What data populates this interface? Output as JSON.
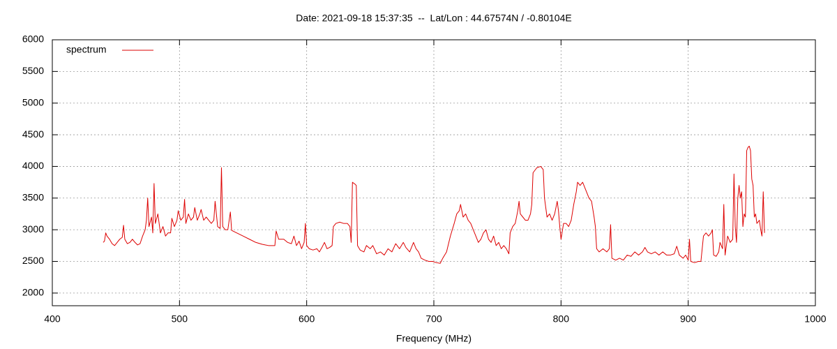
{
  "chart_data": {
    "type": "line",
    "title": "Date: 2021-09-18 15:37:35  --  Lat/Lon : 44.67574N / -0.80104E",
    "x_label": "Frequency (MHz)",
    "xlim": [
      400,
      1000
    ],
    "xticks": [
      400,
      500,
      600,
      700,
      800,
      900,
      1000
    ],
    "ylim": [
      1800,
      6000
    ],
    "yticks": [
      2000,
      2500,
      3000,
      3500,
      4000,
      4500,
      5000,
      5500,
      6000
    ],
    "grid": true,
    "legend": "top-left",
    "x": [
      440,
      441,
      442,
      443,
      445,
      447,
      449,
      451,
      453,
      455,
      456,
      457,
      459,
      461,
      463,
      465,
      467,
      469,
      471,
      473,
      474,
      475,
      476,
      478,
      479,
      480,
      481,
      483,
      485,
      487,
      489,
      491,
      493,
      494,
      496,
      498,
      499,
      501,
      503,
      504,
      505,
      507,
      509,
      511,
      512,
      514,
      516,
      517,
      519,
      521,
      523,
      525,
      527,
      528,
      530,
      532,
      533,
      534,
      536,
      538,
      540,
      541,
      545,
      550,
      555,
      560,
      565,
      570,
      575,
      576,
      578,
      582,
      585,
      588,
      590,
      592,
      594,
      596,
      598,
      599,
      600,
      602,
      605,
      608,
      610,
      612,
      614,
      616,
      618,
      620,
      621,
      623,
      626,
      629,
      632,
      634,
      635,
      636,
      638,
      639,
      640,
      642,
      645,
      647,
      650,
      652,
      655,
      658,
      661,
      664,
      667,
      670,
      673,
      676,
      678,
      681,
      684,
      686,
      688,
      690,
      693,
      696,
      699,
      702,
      705,
      707,
      710,
      713,
      716,
      718,
      720,
      721,
      723,
      725,
      727,
      729,
      731,
      733,
      735,
      737,
      739,
      741,
      743,
      745,
      747,
      749,
      751,
      753,
      755,
      757,
      759,
      760,
      762,
      764,
      766,
      767,
      768,
      770,
      772,
      774,
      776,
      777,
      778,
      781,
      784,
      786,
      787,
      789,
      791,
      793,
      795,
      797,
      798,
      799,
      800,
      802,
      804,
      806,
      808,
      810,
      812,
      813,
      815,
      817,
      819,
      820,
      822,
      824,
      826,
      827,
      828,
      830,
      833,
      836,
      838,
      839,
      840,
      843,
      846,
      849,
      852,
      855,
      858,
      861,
      864,
      866,
      868,
      871,
      874,
      877,
      880,
      883,
      886,
      889,
      891,
      893,
      896,
      898,
      900,
      901,
      902,
      905,
      908,
      910,
      912,
      914,
      916,
      918,
      919,
      920,
      922,
      924,
      925,
      927,
      928,
      929,
      931,
      933,
      935,
      936,
      937,
      938,
      939,
      940,
      941,
      942,
      943,
      944,
      945,
      946,
      947,
      948,
      949,
      950,
      951,
      952,
      953,
      954,
      956,
      957,
      958,
      959,
      960
    ],
    "series": [
      {
        "name": "spectrum",
        "color": "#dd0000",
        "values": [
          2800,
          2820,
          2950,
          2900,
          2850,
          2780,
          2750,
          2800,
          2850,
          2880,
          3070,
          2850,
          2780,
          2800,
          2850,
          2800,
          2760,
          2780,
          2900,
          3000,
          3150,
          3500,
          3050,
          3200,
          2950,
          3730,
          3100,
          3250,
          2950,
          3050,
          2900,
          2950,
          2950,
          3180,
          3050,
          3150,
          3300,
          3150,
          3200,
          3480,
          3100,
          3250,
          3150,
          3200,
          3350,
          3150,
          3250,
          3320,
          3150,
          3200,
          3150,
          3100,
          3150,
          3450,
          3050,
          3020,
          3980,
          3050,
          3000,
          3000,
          3280,
          2990,
          2950,
          2900,
          2850,
          2800,
          2770,
          2750,
          2750,
          2980,
          2850,
          2850,
          2800,
          2780,
          2900,
          2750,
          2820,
          2700,
          2800,
          3100,
          2750,
          2700,
          2680,
          2700,
          2650,
          2720,
          2800,
          2700,
          2720,
          2750,
          3050,
          3100,
          3120,
          3100,
          3100,
          3050,
          2800,
          3750,
          3720,
          3700,
          2750,
          2680,
          2650,
          2750,
          2700,
          2750,
          2620,
          2650,
          2600,
          2700,
          2650,
          2780,
          2700,
          2800,
          2720,
          2650,
          2800,
          2700,
          2650,
          2550,
          2520,
          2500,
          2500,
          2480,
          2470,
          2550,
          2650,
          2900,
          3100,
          3250,
          3300,
          3400,
          3200,
          3250,
          3150,
          3100,
          3000,
          2900,
          2800,
          2850,
          2950,
          3000,
          2850,
          2800,
          2900,
          2750,
          2800,
          2700,
          2750,
          2700,
          2620,
          2950,
          3050,
          3100,
          3300,
          3450,
          3250,
          3200,
          3150,
          3150,
          3250,
          3400,
          3900,
          3980,
          4000,
          3950,
          3500,
          3200,
          3250,
          3150,
          3250,
          3450,
          3300,
          3050,
          2850,
          3100,
          3100,
          3050,
          3150,
          3400,
          3600,
          3750,
          3700,
          3750,
          3650,
          3600,
          3500,
          3450,
          3200,
          3050,
          2700,
          2650,
          2700,
          2650,
          2700,
          3080,
          2550,
          2520,
          2550,
          2520,
          2600,
          2580,
          2650,
          2600,
          2650,
          2720,
          2650,
          2620,
          2650,
          2600,
          2650,
          2600,
          2600,
          2620,
          2740,
          2600,
          2550,
          2600,
          2520,
          2850,
          2500,
          2480,
          2500,
          2500,
          2900,
          2950,
          2900,
          2950,
          3000,
          2600,
          2580,
          2650,
          2800,
          2700,
          3400,
          2600,
          2900,
          2800,
          2850,
          3880,
          3050,
          2800,
          3500,
          3700,
          3500,
          3600,
          3050,
          3250,
          3200,
          4250,
          4300,
          4320,
          4250,
          3800,
          3700,
          3200,
          3250,
          3100,
          3150,
          3000,
          2900,
          3600,
          2950
        ]
      }
    ]
  }
}
